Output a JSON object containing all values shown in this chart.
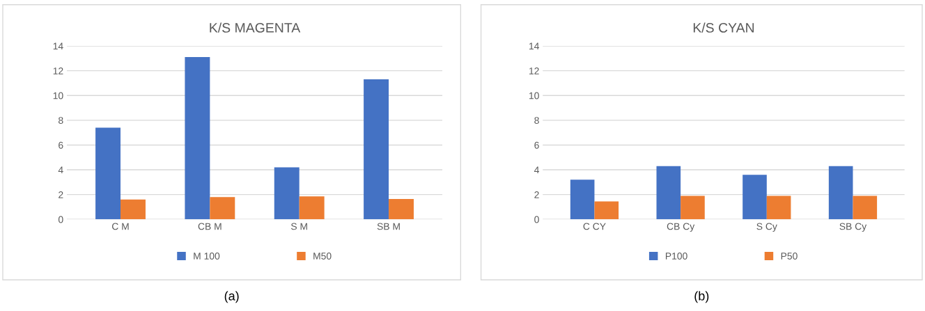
{
  "chart_data": [
    {
      "type": "bar",
      "title": "K/S MAGENTA",
      "categories": [
        "C M",
        "CB M",
        "S M",
        "SB M"
      ],
      "series": [
        {
          "name": "M 100",
          "color": "#4472c4",
          "values": [
            7.4,
            13.1,
            4.2,
            11.3
          ]
        },
        {
          "name": "M50",
          "color": "#ed7d31",
          "values": [
            1.6,
            1.8,
            1.85,
            1.65
          ]
        }
      ],
      "ylim": [
        0,
        14
      ],
      "yticks": [
        0,
        2,
        4,
        6,
        8,
        10,
        12,
        14
      ],
      "grid": "y",
      "legend": "bottom",
      "annotations": [
        "(a)"
      ]
    },
    {
      "type": "bar",
      "title": "K/S CYAN",
      "categories": [
        "C CY",
        "CB Cy",
        "S Cy",
        "SB Cy"
      ],
      "series": [
        {
          "name": "P100",
          "color": "#4472c4",
          "values": [
            3.2,
            4.3,
            3.6,
            4.3
          ]
        },
        {
          "name": "P50",
          "color": "#ed7d31",
          "values": [
            1.45,
            1.9,
            1.9,
            1.9
          ]
        }
      ],
      "ylim": [
        0,
        14
      ],
      "yticks": [
        0,
        2,
        4,
        6,
        8,
        10,
        12,
        14
      ],
      "grid": "y",
      "legend": "bottom",
      "annotations": [
        "(b)"
      ]
    }
  ]
}
